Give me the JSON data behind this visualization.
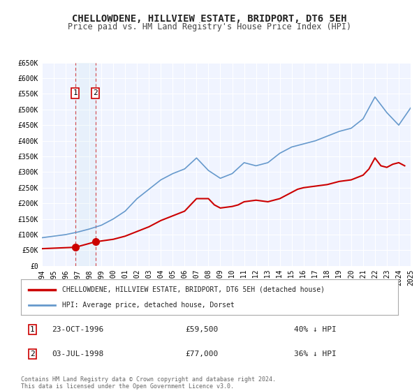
{
  "title": "CHELLOWDENE, HILLVIEW ESTATE, BRIDPORT, DT6 5EH",
  "subtitle": "Price paid vs. HM Land Registry's House Price Index (HPI)",
  "xlabel": "",
  "ylabel": "",
  "background_color": "#ffffff",
  "plot_bg_color": "#f0f4ff",
  "grid_color": "#ffffff",
  "sale1": {
    "date_label": "23-OCT-1996",
    "price": 59500,
    "year": 1996.81,
    "label": "1",
    "hpi_pct": "40% ↓ HPI"
  },
  "sale2": {
    "date_label": "03-JUL-1998",
    "price": 77000,
    "year": 1998.5,
    "label": "2",
    "hpi_pct": "36% ↓ HPI"
  },
  "legend_line1": "CHELLOWDENE, HILLVIEW ESTATE, BRIDPORT, DT6 5EH (detached house)",
  "legend_line2": "HPI: Average price, detached house, Dorset",
  "footer1": "Contains HM Land Registry data © Crown copyright and database right 2024.",
  "footer2": "This data is licensed under the Open Government Licence v3.0.",
  "red_color": "#cc0000",
  "blue_color": "#6699cc",
  "hpi_years": [
    1994,
    1995,
    1996,
    1997,
    1998,
    1999,
    2000,
    2001,
    2002,
    2003,
    2004,
    2005,
    2006,
    2007,
    2008,
    2009,
    2010,
    2011,
    2012,
    2013,
    2014,
    2015,
    2016,
    2017,
    2018,
    2019,
    2020,
    2021,
    2022,
    2023,
    2024,
    2025
  ],
  "hpi_values": [
    90000,
    95000,
    100000,
    108000,
    118000,
    130000,
    150000,
    175000,
    215000,
    245000,
    275000,
    295000,
    310000,
    345000,
    305000,
    280000,
    295000,
    330000,
    320000,
    330000,
    360000,
    380000,
    390000,
    400000,
    415000,
    430000,
    440000,
    470000,
    540000,
    490000,
    450000,
    505000
  ],
  "property_years": [
    1994.0,
    1996.81,
    1998.5,
    2000,
    2001,
    2002,
    2003,
    2004,
    2005,
    2006,
    2007,
    2008,
    2008.5,
    2009,
    2010,
    2010.5,
    2011,
    2012,
    2013,
    2014,
    2015,
    2015.5,
    2016,
    2017,
    2018,
    2019,
    2020,
    2021,
    2021.5,
    2022,
    2022.5,
    2023,
    2023.5,
    2024,
    2024.5
  ],
  "property_values": [
    55000,
    59500,
    77000,
    85000,
    95000,
    110000,
    125000,
    145000,
    160000,
    175000,
    215000,
    215000,
    195000,
    185000,
    190000,
    195000,
    205000,
    210000,
    205000,
    215000,
    235000,
    245000,
    250000,
    255000,
    260000,
    270000,
    275000,
    290000,
    310000,
    345000,
    320000,
    315000,
    325000,
    330000,
    320000
  ],
  "xmin": 1994,
  "xmax": 2025,
  "ymin": 0,
  "ymax": 650000,
  "yticks": [
    0,
    50000,
    100000,
    150000,
    200000,
    250000,
    300000,
    350000,
    400000,
    450000,
    500000,
    550000,
    600000,
    650000
  ],
  "xticks": [
    1994,
    1995,
    1996,
    1997,
    1998,
    1999,
    2000,
    2001,
    2002,
    2003,
    2004,
    2005,
    2006,
    2007,
    2008,
    2009,
    2010,
    2011,
    2012,
    2013,
    2014,
    2015,
    2016,
    2017,
    2018,
    2019,
    2020,
    2021,
    2022,
    2023,
    2024,
    2025
  ]
}
